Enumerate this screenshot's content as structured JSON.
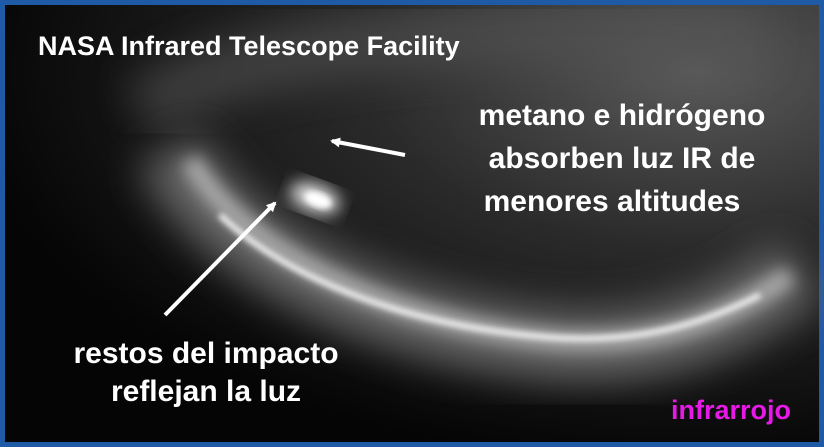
{
  "title": "NASA Infrared Telescope Facility",
  "annotations": [
    {
      "lines": [
        "metano e hidrógeno",
        "absorben luz IR de",
        "menores altitudes"
      ]
    },
    {
      "lines": [
        "restos del impacto",
        "reflejan la luz"
      ]
    }
  ],
  "label": "infrarrojo"
}
